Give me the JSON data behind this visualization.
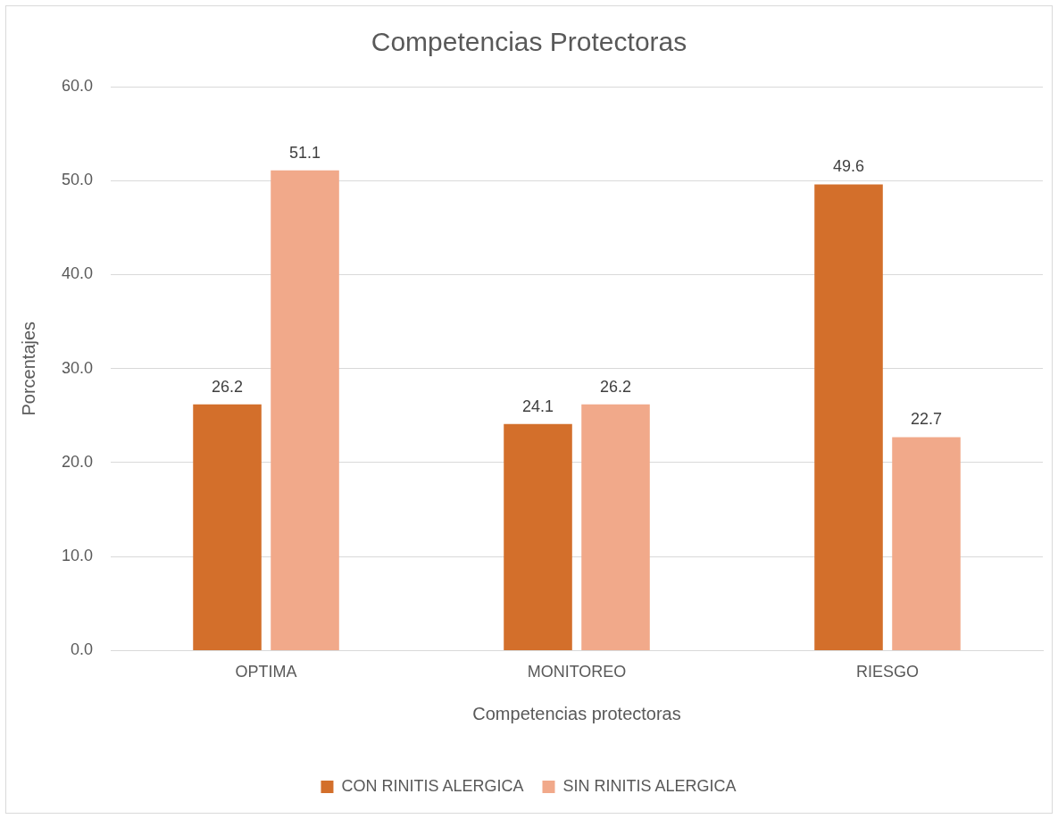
{
  "chart_data": {
    "type": "bar",
    "title": "Competencias Protectoras",
    "xlabel": "Competencias protectoras",
    "ylabel": "Porcentajes",
    "categories": [
      "OPTIMA",
      "MONITOREO",
      "RIESGO"
    ],
    "series": [
      {
        "name": "CON RINITIS ALERGICA",
        "color": "#d36f2b",
        "values": [
          26.2,
          24.1,
          49.6
        ]
      },
      {
        "name": "SIN RINITIS ALERGICA",
        "color": "#f1a98a",
        "values": [
          51.1,
          26.2,
          22.7
        ]
      }
    ],
    "ylim": [
      0,
      60
    ],
    "yticks": [
      {
        "value": 0,
        "label": "0.0"
      },
      {
        "value": 10,
        "label": "10.0"
      },
      {
        "value": 20,
        "label": "20.0"
      },
      {
        "value": 30,
        "label": "30.0"
      },
      {
        "value": 40,
        "label": "40.0"
      },
      {
        "value": 50,
        "label": "50.0"
      },
      {
        "value": 60,
        "label": "60.0"
      }
    ],
    "grid": "y",
    "legend": "bottom",
    "data_labels": true
  }
}
